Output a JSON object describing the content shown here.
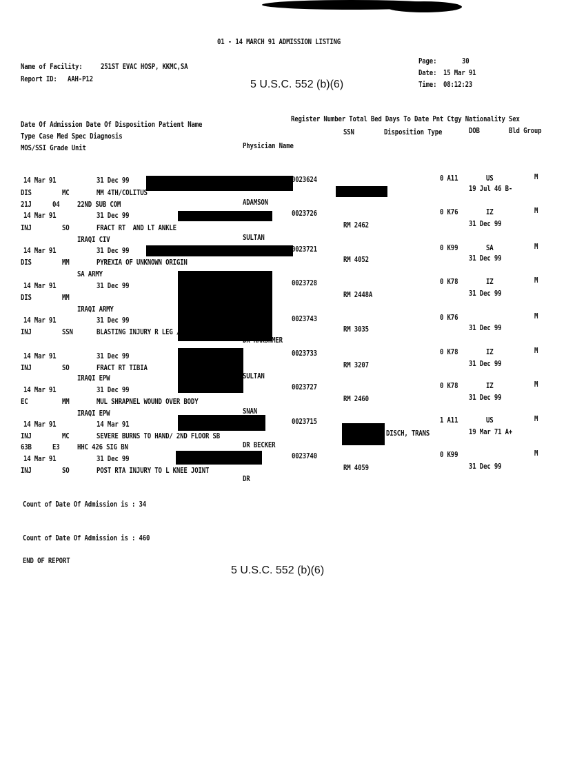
{
  "header": {
    "title": "01 - 14 MARCH 91 ADMISSION LISTING",
    "facility_label": "Name of Facility:",
    "facility": "251ST EVAC HOSP, KKMC,SA",
    "report_id_label": "Report ID:",
    "report_id": "AAH-P12",
    "page_label": "Page:",
    "page": "30",
    "date_label": "Date:",
    "date": "15 Mar 91",
    "time_label": "Time:",
    "time": "08:12:23"
  },
  "stamp": "5 U.S.C. 552 (b)(6)",
  "columns": {
    "line1_left": "Date Of Admission Date Of Disposition Patient Name",
    "line1_right": "Register Number Total Bed Days To Date Pnt Ctgy Nationality Sex",
    "line2_left": "Type Case Med Spec Diagnosis",
    "line2_ssn": "SSN",
    "line2_right": "Disposition Type",
    "line2_dob": "DOB",
    "line2_bld": "Bld Group",
    "line3_left": "MOS/SSI Grade Unit",
    "line3_physician": "Physician Name"
  },
  "records": [
    {
      "admit": "14 Mar 91",
      "disp": "31 Dec 99",
      "reg": "0023624",
      "ctgy": "0 A11",
      "nat": "US",
      "sex": "M",
      "type": "DIS",
      "spec": "MC",
      "diag": "MM 4TH/COLITUS",
      "dispo": "",
      "dob": "19 Jul 46 B-",
      "mos": "21J",
      "grade": "04",
      "unit": "22ND SUB COM",
      "physician": "ADAMSON"
    },
    {
      "admit": "14 Mar 91",
      "disp": "31 Dec 99",
      "reg": "0023726",
      "ctgy": "0 K76",
      "nat": "IZ",
      "sex": "M",
      "type": "INJ",
      "spec": "SO",
      "diag": "FRACT RT  AND LT ANKLE",
      "dispo": "RM 2462",
      "dob": "31 Dec 99",
      "mos": "",
      "grade": "",
      "unit": "IRAQI CIV",
      "physician": "SULTAN"
    },
    {
      "admit": "14 Mar 91",
      "disp": "31 Dec 99",
      "reg": "0023721",
      "ctgy": "0 K99",
      "nat": "SA",
      "sex": "M",
      "type": "DIS",
      "spec": "MM",
      "diag": "PYREXIA OF UNKNOWN ORIGIN",
      "dispo": "RM 4052",
      "dob": "31 Dec 99",
      "mos": "",
      "grade": "",
      "unit": "SA ARMY",
      "physician": ""
    },
    {
      "admit": "14 Mar 91",
      "disp": "31 Dec 99",
      "reg": "0023728",
      "ctgy": "0 K78",
      "nat": "IZ",
      "sex": "M",
      "type": "DIS",
      "spec": "MM",
      "diag": "",
      "dispo": "RM 2448A",
      "dob": "31 Dec 99",
      "mos": "",
      "grade": "",
      "unit": "IRAQI ARMY",
      "physician": ""
    },
    {
      "admit": "14 Mar 91",
      "disp": "31 Dec 99",
      "reg": "0023743",
      "ctgy": "0 K76",
      "nat": "",
      "sex": "M",
      "type": "INJ",
      "spec": "SSN",
      "diag": "BLASTING INJURY R LEG /3RD FLOOR SO",
      "dispo": "RM 3035",
      "dob": "31 Dec 99",
      "mos": "",
      "grade": "",
      "unit": "",
      "physician": "DR KARSHMER"
    },
    {
      "admit": "14 Mar 91",
      "disp": "31 Dec 99",
      "reg": "0023733",
      "ctgy": "0 K78",
      "nat": "IZ",
      "sex": "M",
      "type": "INJ",
      "spec": "SO",
      "diag": "FRACT RT TIBIA",
      "dispo": "RM 3207",
      "dob": "31 Dec 99",
      "mos": "",
      "grade": "",
      "unit": "IRAQI EPW",
      "physician": "SULTAN"
    },
    {
      "admit": "14 Mar 91",
      "disp": "31 Dec 99",
      "reg": "0023727",
      "ctgy": "0 K78",
      "nat": "IZ",
      "sex": "M",
      "type": "EC",
      "spec": "MM",
      "diag": "MUL SHRAPNEL WOUND OVER BODY",
      "dispo": "RM 2460",
      "dob": "31 Dec 99",
      "mos": "",
      "grade": "",
      "unit": "IRAQI EPW",
      "physician": "SNAN"
    },
    {
      "admit": "14 Mar 91",
      "disp": "14 Mar 91",
      "reg": "0023715",
      "ctgy": "1 A11",
      "nat": "US",
      "sex": "M",
      "type": "INJ",
      "spec": "MC",
      "diag": "SEVERE BURNS TO HAND/ 2ND FLOOR SB",
      "dispo": "DISCH, TRANS",
      "dob": "19 Mar 71 A+",
      "mos": "63B",
      "grade": "E3",
      "unit": "HHC 426 SIG BN",
      "physician": "DR BECKER"
    },
    {
      "admit": "14 Mar 91",
      "disp": "31 Dec 99",
      "reg": "0023740",
      "ctgy": "0 K99",
      "nat": "",
      "sex": "M",
      "type": "INJ",
      "spec": "SO",
      "diag": "POST RTA INJURY TO L KNEE JOINT",
      "dispo": "RM 4059",
      "dob": "31 Dec 99",
      "mos": "",
      "grade": "",
      "unit": "",
      "physician": "DR"
    }
  ],
  "footer": {
    "count1": "Count of Date Of Admission is : 34",
    "count2": "Count of Date Of Admission is : 460",
    "end": "END OF REPORT"
  }
}
